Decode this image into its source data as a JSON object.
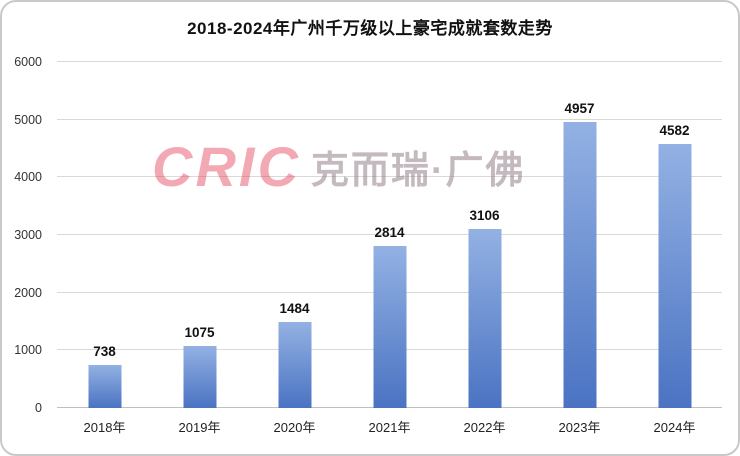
{
  "title": "2018-2024年广州千万级以上豪宅成就套数走势",
  "watermark": {
    "logo": "CRIC",
    "text": "克而瑞·广佛"
  },
  "colors": {
    "bar_top": "#93b1e3",
    "bar_bottom": "#4a73c2",
    "gridline": "#d9d9d9",
    "watermark_logo": "#e44056",
    "watermark_text": "#94808a"
  },
  "chart_data": {
    "type": "bar",
    "title": "2018-2024年广州千万级以上豪宅成就套数走势",
    "categories": [
      "2018年",
      "2019年",
      "2020年",
      "2021年",
      "2022年",
      "2023年",
      "2024年"
    ],
    "values": [
      738,
      1075,
      1484,
      2814,
      3106,
      4957,
      4582
    ],
    "xlabel": "",
    "ylabel": "",
    "ylim": [
      0,
      6000
    ],
    "ytick_interval": 1000,
    "grid": true,
    "legend": "none",
    "value_labels": "above-bars"
  }
}
